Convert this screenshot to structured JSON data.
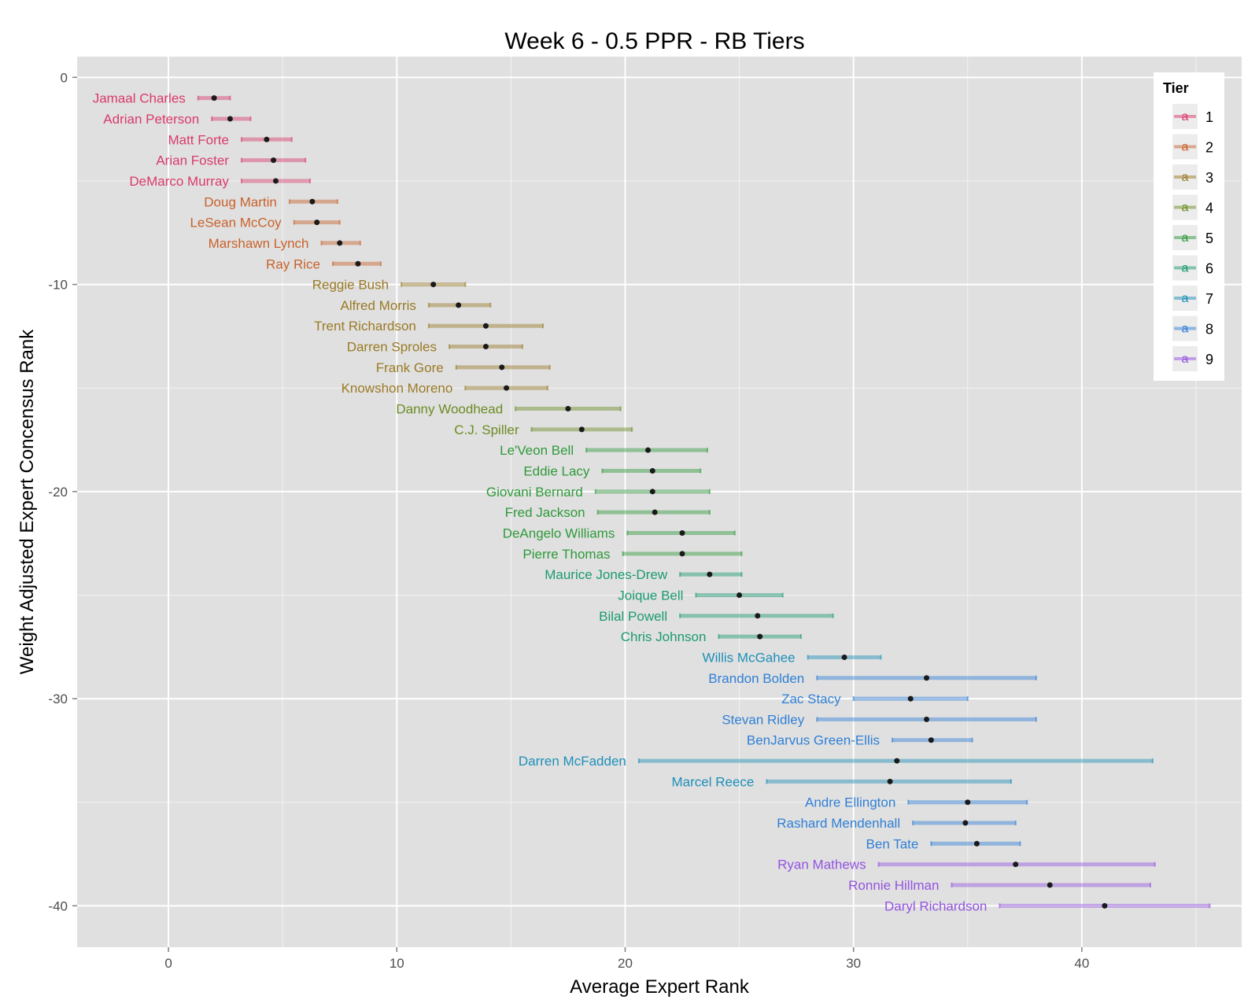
{
  "chart_data": {
    "type": "scatter",
    "title": "Week 6 - 0.5 PPR - RB Tiers",
    "xlabel": "Average Expert Rank",
    "ylabel": "Weight Adjusted Expert Concensus Rank",
    "xlim": [
      -4,
      47
    ],
    "ylim": [
      -42,
      1
    ],
    "x_ticks": [
      0,
      10,
      20,
      30,
      40
    ],
    "y_ticks": [
      0,
      -10,
      -20,
      -30,
      -40
    ],
    "grid": true,
    "legend": {
      "title": "Tier",
      "placement": "right-top",
      "key_glyph": "a"
    },
    "tier_colors": {
      "1": "#d93a6a",
      "2": "#c8622b",
      "3": "#9a7a25",
      "4": "#6b8c23",
      "5": "#2e9a3a",
      "6": "#1b9a72",
      "7": "#1e8fb8",
      "8": "#2f7fd6",
      "9": "#9354e0"
    },
    "players": [
      {
        "name": "Jamaal Charles",
        "tier": 1,
        "rank": -1,
        "avg": 2.0,
        "low": 1.3,
        "high": 2.7
      },
      {
        "name": "Adrian Peterson",
        "tier": 1,
        "rank": -2,
        "avg": 2.7,
        "low": 1.9,
        "high": 3.6
      },
      {
        "name": "Matt Forte",
        "tier": 1,
        "rank": -3,
        "avg": 4.3,
        "low": 3.2,
        "high": 5.4
      },
      {
        "name": "Arian Foster",
        "tier": 1,
        "rank": -4,
        "avg": 4.6,
        "low": 3.2,
        "high": 6.0
      },
      {
        "name": "DeMarco Murray",
        "tier": 1,
        "rank": -5,
        "avg": 4.7,
        "low": 3.2,
        "high": 6.2
      },
      {
        "name": "Doug Martin",
        "tier": 2,
        "rank": -6,
        "avg": 6.3,
        "low": 5.3,
        "high": 7.4
      },
      {
        "name": "LeSean McCoy",
        "tier": 2,
        "rank": -7,
        "avg": 6.5,
        "low": 5.5,
        "high": 7.5
      },
      {
        "name": "Marshawn Lynch",
        "tier": 2,
        "rank": -8,
        "avg": 7.5,
        "low": 6.7,
        "high": 8.4
      },
      {
        "name": "Ray Rice",
        "tier": 2,
        "rank": -9,
        "avg": 8.3,
        "low": 7.2,
        "high": 9.3
      },
      {
        "name": "Reggie Bush",
        "tier": 3,
        "rank": -10,
        "avg": 11.6,
        "low": 10.2,
        "high": 13.0
      },
      {
        "name": "Alfred Morris",
        "tier": 3,
        "rank": -11,
        "avg": 12.7,
        "low": 11.4,
        "high": 14.1
      },
      {
        "name": "Trent Richardson",
        "tier": 3,
        "rank": -12,
        "avg": 13.9,
        "low": 11.4,
        "high": 16.4
      },
      {
        "name": "Darren Sproles",
        "tier": 3,
        "rank": -13,
        "avg": 13.9,
        "low": 12.3,
        "high": 15.5
      },
      {
        "name": "Frank Gore",
        "tier": 3,
        "rank": -14,
        "avg": 14.6,
        "low": 12.6,
        "high": 16.7
      },
      {
        "name": "Knowshon Moreno",
        "tier": 3,
        "rank": -15,
        "avg": 14.8,
        "low": 13.0,
        "high": 16.6
      },
      {
        "name": "Danny Woodhead",
        "tier": 4,
        "rank": -16,
        "avg": 17.5,
        "low": 15.2,
        "high": 19.8
      },
      {
        "name": "C.J. Spiller",
        "tier": 4,
        "rank": -17,
        "avg": 18.1,
        "low": 15.9,
        "high": 20.3
      },
      {
        "name": "Le'Veon Bell",
        "tier": 5,
        "rank": -18,
        "avg": 21.0,
        "low": 18.3,
        "high": 23.6
      },
      {
        "name": "Eddie Lacy",
        "tier": 5,
        "rank": -19,
        "avg": 21.2,
        "low": 19.0,
        "high": 23.3
      },
      {
        "name": "Giovani Bernard",
        "tier": 5,
        "rank": -20,
        "avg": 21.2,
        "low": 18.7,
        "high": 23.7
      },
      {
        "name": "Fred Jackson",
        "tier": 5,
        "rank": -21,
        "avg": 21.3,
        "low": 18.8,
        "high": 23.7
      },
      {
        "name": "DeAngelo Williams",
        "tier": 5,
        "rank": -22,
        "avg": 22.5,
        "low": 20.1,
        "high": 24.8
      },
      {
        "name": "Pierre Thomas",
        "tier": 5,
        "rank": -23,
        "avg": 22.5,
        "low": 19.9,
        "high": 25.1
      },
      {
        "name": "Maurice Jones-Drew",
        "tier": 6,
        "rank": -24,
        "avg": 23.7,
        "low": 22.4,
        "high": 25.1
      },
      {
        "name": "Joique Bell",
        "tier": 6,
        "rank": -25,
        "avg": 25.0,
        "low": 23.1,
        "high": 26.9
      },
      {
        "name": "Bilal Powell",
        "tier": 6,
        "rank": -26,
        "avg": 25.8,
        "low": 22.4,
        "high": 29.1
      },
      {
        "name": "Chris Johnson",
        "tier": 6,
        "rank": -27,
        "avg": 25.9,
        "low": 24.1,
        "high": 27.7
      },
      {
        "name": "Willis McGahee",
        "tier": 7,
        "rank": -28,
        "avg": 29.6,
        "low": 28.0,
        "high": 31.2
      },
      {
        "name": "Brandon Bolden",
        "tier": 8,
        "rank": -29,
        "avg": 33.2,
        "low": 28.4,
        "high": 38.0
      },
      {
        "name": "Zac Stacy",
        "tier": 8,
        "rank": -30,
        "avg": 32.5,
        "low": 30.0,
        "high": 35.0
      },
      {
        "name": "Stevan Ridley",
        "tier": 8,
        "rank": -31,
        "avg": 33.2,
        "low": 28.4,
        "high": 38.0
      },
      {
        "name": "BenJarvus Green-Ellis",
        "tier": 8,
        "rank": -32,
        "avg": 33.4,
        "low": 31.7,
        "high": 35.2
      },
      {
        "name": "Darren McFadden",
        "tier": 7,
        "rank": -33,
        "avg": 31.9,
        "low": 20.6,
        "high": 43.1
      },
      {
        "name": "Marcel Reece",
        "tier": 7,
        "rank": -34,
        "avg": 31.6,
        "low": 26.2,
        "high": 36.9
      },
      {
        "name": "Andre Ellington",
        "tier": 8,
        "rank": -35,
        "avg": 35.0,
        "low": 32.4,
        "high": 37.6
      },
      {
        "name": "Rashard Mendenhall",
        "tier": 8,
        "rank": -36,
        "avg": 34.9,
        "low": 32.6,
        "high": 37.1
      },
      {
        "name": "Ben Tate",
        "tier": 8,
        "rank": -37,
        "avg": 35.4,
        "low": 33.4,
        "high": 37.3
      },
      {
        "name": "Ryan Mathews",
        "tier": 9,
        "rank": -38,
        "avg": 37.1,
        "low": 31.1,
        "high": 43.2
      },
      {
        "name": "Ronnie Hillman",
        "tier": 9,
        "rank": -39,
        "avg": 38.6,
        "low": 34.3,
        "high": 43.0
      },
      {
        "name": "Daryl Richardson",
        "tier": 9,
        "rank": -40,
        "avg": 41.0,
        "low": 36.4,
        "high": 45.6
      }
    ]
  }
}
